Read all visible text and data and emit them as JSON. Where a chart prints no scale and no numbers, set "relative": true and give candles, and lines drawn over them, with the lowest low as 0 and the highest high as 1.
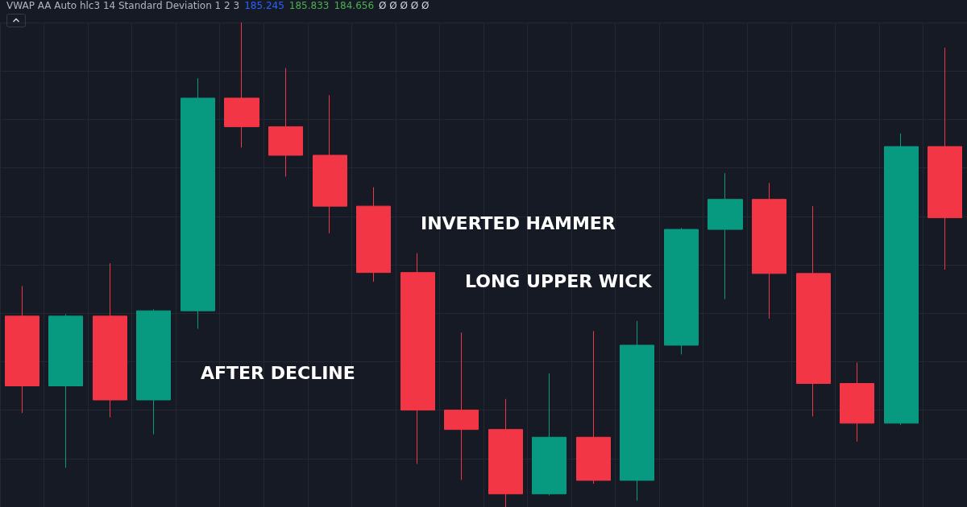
{
  "chart_data": {
    "type": "candlestick",
    "relative": true,
    "grid": true,
    "categories": [
      null,
      null,
      null,
      null,
      null,
      null,
      null,
      null,
      null,
      null,
      null,
      null,
      null,
      null,
      null,
      null,
      null,
      null,
      null,
      null,
      null,
      null
    ],
    "ohlc": [
      [
        0.394,
        0.456,
        0.194,
        0.25
      ],
      [
        0.25,
        0.398,
        0.081,
        0.394
      ],
      [
        0.394,
        0.503,
        0.185,
        0.221
      ],
      [
        0.221,
        0.408,
        0.15,
        0.405
      ],
      [
        0.405,
        0.885,
        0.368,
        0.844
      ],
      [
        0.844,
        1,
        0.742,
        0.785
      ],
      [
        0.785,
        0.906,
        0.682,
        0.726
      ],
      [
        0.726,
        0.85,
        0.565,
        0.621
      ],
      [
        0.621,
        0.66,
        0.465,
        0.484
      ],
      [
        0.484,
        0.524,
        0.089,
        0.2
      ],
      [
        0.2,
        0.36,
        0.056,
        0.16
      ],
      [
        0.16,
        0.223,
        0,
        0.027
      ],
      [
        0.027,
        0.276,
        0.024,
        0.144
      ],
      [
        0.144,
        0.363,
        0.048,
        0.055
      ],
      [
        0.055,
        0.384,
        0.013,
        0.334
      ],
      [
        0.334,
        0.576,
        0.315,
        0.573
      ],
      [
        0.573,
        0.689,
        0.429,
        0.635
      ],
      [
        0.635,
        0.669,
        0.389,
        0.482
      ],
      [
        0.482,
        0.621,
        0.187,
        0.255
      ],
      [
        0.255,
        0.298,
        0.135,
        0.173
      ],
      [
        0.173,
        0.771,
        0.169,
        0.744
      ],
      [
        0.744,
        0.948,
        0.49,
        0.597
      ]
    ],
    "colors": [
      "#f23645",
      "#089981",
      "#f23645",
      "#089981",
      "#089981",
      "#f23645",
      "#f23645",
      "#f23645",
      "#f23645",
      "#f23645",
      "#f23645",
      "#f23645",
      "#089981",
      "#f23645",
      "#089981",
      "#089981",
      "#089981",
      "#f23645",
      "#f23645",
      "#f23645",
      "#089981",
      "#f23645"
    ],
    "annotations": [
      "VWAP AA Auto hlc3 14 Standard Deviation 1 2 3",
      "185.245",
      "185.833",
      "184.656",
      "Ø Ø Ø Ø Ø",
      "INVERTED HAMMER",
      "LONG UPPER WICK",
      "AFTER DECLINE"
    ]
  }
}
